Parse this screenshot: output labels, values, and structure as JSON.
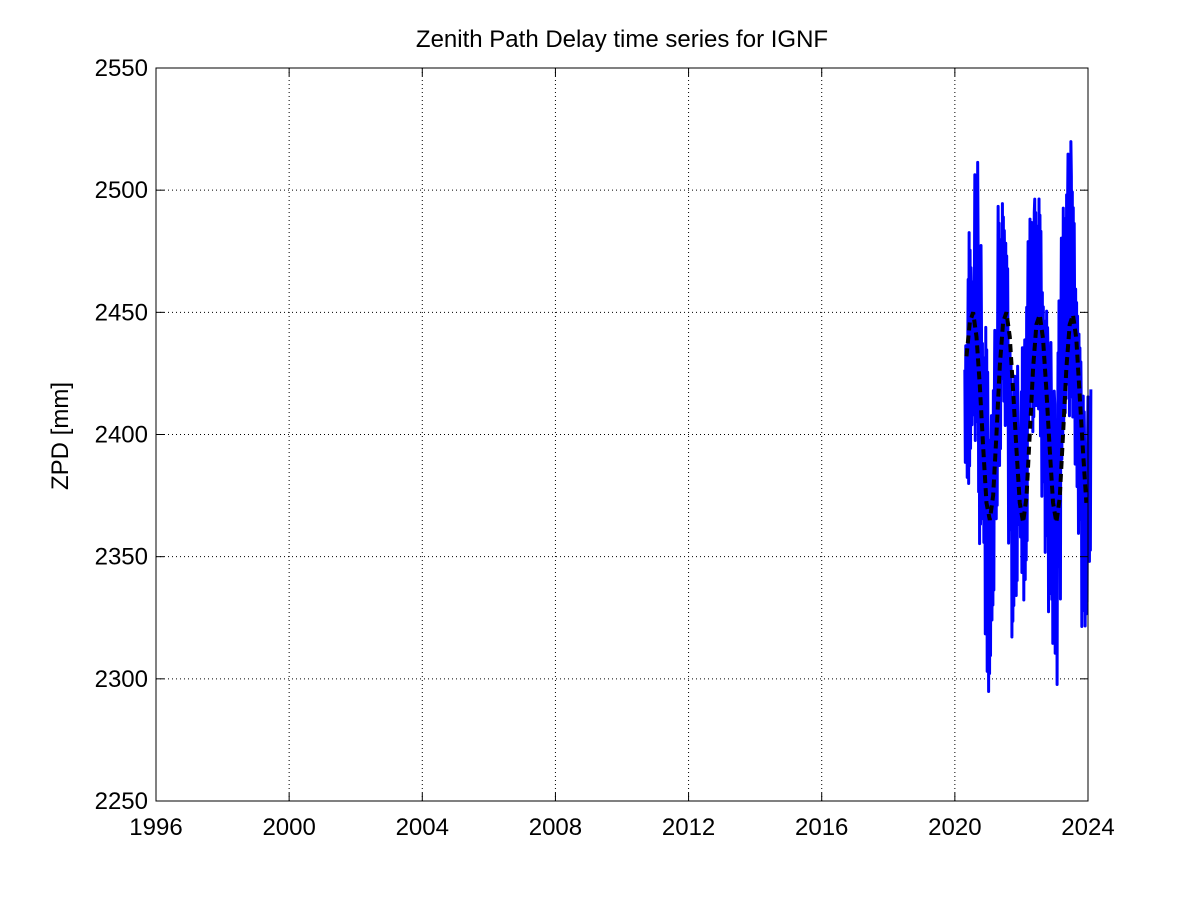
{
  "chart_data": {
    "type": "line",
    "title": "Zenith Path Delay time series for IGNF",
    "xlabel": "",
    "ylabel": "ZPD [mm]",
    "xlim": [
      1996,
      2024
    ],
    "ylim": [
      2250,
      2550
    ],
    "xticks": [
      "1996",
      "2000",
      "2004",
      "2008",
      "2012",
      "2016",
      "2020",
      "2024"
    ],
    "yticks": [
      "2250",
      "2300",
      "2350",
      "2400",
      "2450",
      "2500",
      "2550"
    ],
    "grid": true,
    "colors": {
      "observed": "#0000ff",
      "seasonal_fit": "#000000",
      "grid": "#000000"
    },
    "series": [
      {
        "style": "solid",
        "x": [
          2020.3,
          2020.4,
          2020.5,
          2020.6,
          2020.7,
          2020.8,
          2020.9,
          2021.0,
          2021.1,
          2021.2,
          2021.3,
          2021.4,
          2021.5,
          2021.6,
          2021.7,
          2021.8,
          2021.9,
          2022.0,
          2022.1,
          2022.2,
          2022.3,
          2022.4,
          2022.5,
          2022.6,
          2022.7,
          2022.8,
          2022.9,
          2023.0,
          2023.1,
          2023.2,
          2023.3,
          2023.4,
          2023.5,
          2023.6,
          2023.7,
          2023.8,
          2023.9,
          2024.0
        ],
        "y_min": [
          2380,
          2368,
          2400,
          2395,
          2350,
          2350,
          2300,
          2285,
          2320,
          2360,
          2385,
          2410,
          2395,
          2350,
          2315,
          2330,
          2355,
          2330,
          2330,
          2400,
          2395,
          2410,
          2395,
          2365,
          2345,
          2325,
          2310,
          2290,
          2330,
          2380,
          2405,
          2400,
          2405,
          2375,
          2350,
          2315,
          2320,
          2345
        ],
        "y_max": [
          2440,
          2485,
          2465,
          2519,
          2480,
          2445,
          2450,
          2405,
          2420,
          2450,
          2498,
          2500,
          2480,
          2440,
          2420,
          2430,
          2405,
          2440,
          2460,
          2490,
          2495,
          2500,
          2503,
          2460,
          2455,
          2445,
          2420,
          2415,
          2460,
          2500,
          2500,
          2525,
          2510,
          2465,
          2443,
          2420,
          2400,
          2420
        ]
      },
      {
        "style": "dashed",
        "x": [
          2020.35,
          2020.45,
          2020.55,
          2020.65,
          2020.75,
          2020.85,
          2020.95,
          2021.05,
          2021.15,
          2021.25,
          2021.35,
          2021.45,
          2021.55,
          2021.65,
          2021.75,
          2021.85,
          2021.95,
          2022.05,
          2022.15,
          2022.25,
          2022.35,
          2022.45,
          2022.55,
          2022.65,
          2022.75,
          2022.85,
          2022.95,
          2023.05,
          2023.15,
          2023.25,
          2023.35,
          2023.45,
          2023.55,
          2023.65,
          2023.75,
          2023.85,
          2023.95
        ],
        "y": [
          2432,
          2446,
          2450,
          2440,
          2420,
          2395,
          2372,
          2365,
          2375,
          2400,
          2428,
          2446,
          2450,
          2440,
          2418,
          2394,
          2372,
          2364,
          2374,
          2400,
          2427,
          2445,
          2449,
          2439,
          2418,
          2394,
          2372,
          2364,
          2374,
          2400,
          2427,
          2445,
          2449,
          2439,
          2416,
          2393,
          2372
        ]
      }
    ]
  }
}
